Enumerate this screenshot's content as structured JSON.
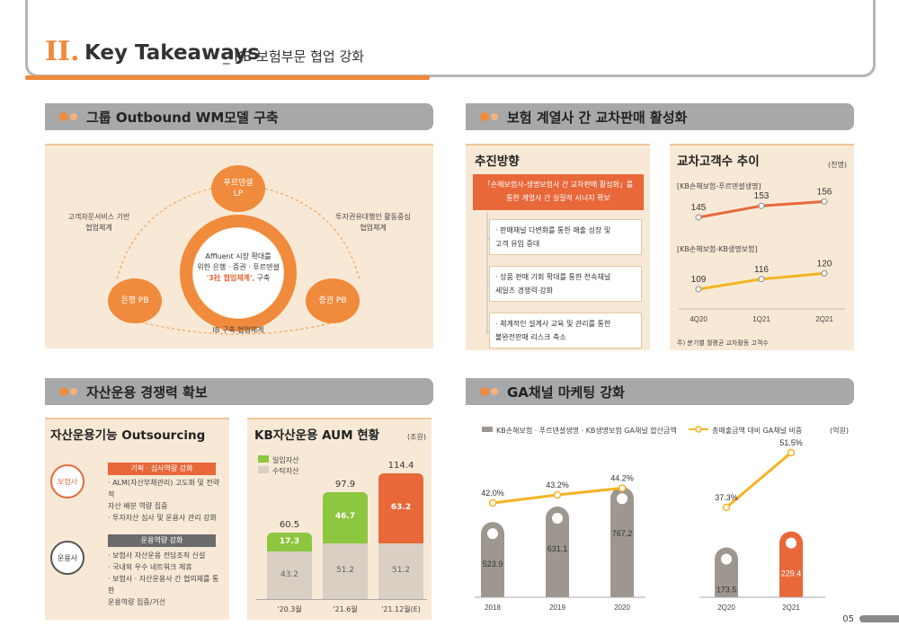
{
  "header": {
    "roman": "II.",
    "title": "Key Takeaways",
    "subtitle": "_ KB 보험부문 협업 강화"
  },
  "sections": {
    "s1": "그룹 Outbound WM모델 구축",
    "s2": "보험 계열사 간 교차판매 활성화",
    "s3": "자산운용 경쟁력 확보",
    "s4": "GA채널 마케팅 강화"
  },
  "wm": {
    "top_circle": "푸르덴셜\nLP",
    "left_circle": "은행 PB",
    "right_circle": "증권 PB",
    "center_l1": "Affluent 시장 확대를",
    "center_l2": "위한 은행 · 증권 · 푸르덴셜",
    "center_hl": "'3社 협업체계'",
    "center_l3": ", 구축",
    "left_label": "고객자문서비스 기반\n협업체계",
    "right_label": "투자권유대행인 활동중심\n협업체계",
    "bottom_label": "IB 구축 협업체계"
  },
  "promo": {
    "title": "추진방향",
    "headline": "「손해보험사-생명보험사 간 교차판매 활성화」를\n통한 계열사 간 실질적 시너지 확보",
    "items": [
      "· 판매채널 다변화를 통한 매출 성장 및\n  고객 유입 증대",
      "· 상품 판매 기회 확대를 통한 전속채널\n  세일즈 경쟁력 강화",
      "· 체계적인 설계사 교육 및 관리를 통한\n  불완전판매 리스크 축소"
    ]
  },
  "cross": {
    "title": "교차고객수 추이",
    "unit": "(천명)",
    "series1_label": "[KB손해보험-푸르덴셜생명]",
    "series2_label": "[KB손해보험-KB생명보험]",
    "footnote": "주) 분기별 월평균 교차활동 고객수"
  },
  "outsourcing": {
    "title": "자산운용기능 Outsourcing",
    "insurer": "보험사",
    "manager": "운용사",
    "box1_title": "기획 · 심사역량 강화",
    "box1_items": "· ALM(자산부채관리) 고도화 및 전략적\n  자산 배분 역량 집중\n· 투자자산 심사 및 운용사 관리 강화",
    "box2_title": "운용역량 강화",
    "box2_items": "· 보험사 자산운용 전담조직 신설\n· 국내외 우수 네트워크 제휴\n· 보험사 · 자산운용사 간 협의체를 통한\n  운용역량 집중/거선"
  },
  "aum": {
    "title": "KB자산운용 AUM 현황",
    "unit": "(조원)",
    "legend1": "일임자산",
    "legend2": "수탁자산"
  },
  "ga": {
    "legend_bar": "KB손해보험 · 푸르덴셜생명 · KB생명보험 GA채널 합산금액",
    "legend_line": "총매출금액 대비 GA채널 비중",
    "unit": "(억원)"
  },
  "page": "05",
  "colors": {
    "orange": "#f08a3c",
    "deep_orange": "#e8683a",
    "green": "#8dc63f",
    "gray": "#a6a8aa",
    "beige": "#f8e9d6",
    "line_yellow": "#f5b324"
  },
  "chart_data": [
    {
      "type": "line",
      "title": "교차고객수 추이",
      "categories": [
        "4Q20",
        "1Q21",
        "2Q21"
      ],
      "series": [
        {
          "name": "[KB손해보험-푸르덴셜생명]",
          "values": [
            145,
            153,
            156
          ]
        },
        {
          "name": "[KB손해보험-KB생명보험]",
          "values": [
            109,
            116,
            120
          ]
        }
      ],
      "unit": "(천명)"
    },
    {
      "type": "bar",
      "title": "KB자산운용 AUM 현황",
      "categories": [
        "'20.3월",
        "'21.6월",
        "'21.12월(E)"
      ],
      "series": [
        {
          "name": "수탁자산",
          "values": [
            43.2,
            51.2,
            51.2
          ]
        },
        {
          "name": "일임자산",
          "values": [
            17.3,
            46.7,
            63.2
          ]
        }
      ],
      "totals": [
        60.5,
        97.9,
        114.4
      ],
      "unit": "(조원)"
    },
    {
      "type": "bar",
      "categories": [
        "2018",
        "2019",
        "2020",
        "2Q20",
        "2Q21"
      ],
      "series": [
        {
          "name": "KB손해보험 · 푸르덴셜생명 · KB생명보험 GA채널 합산금액",
          "values": [
            523.9,
            631.1,
            767.2,
            173.5,
            229.4
          ]
        },
        {
          "name": "총매출금액 대비 GA채널 비중",
          "values": [
            42.0,
            43.2,
            44.2,
            37.3,
            51.5
          ],
          "labels": [
            "42.0%",
            "43.2%",
            "44.2%",
            "37.3%",
            "51.5%"
          ]
        }
      ],
      "unit": "(억원)"
    }
  ]
}
